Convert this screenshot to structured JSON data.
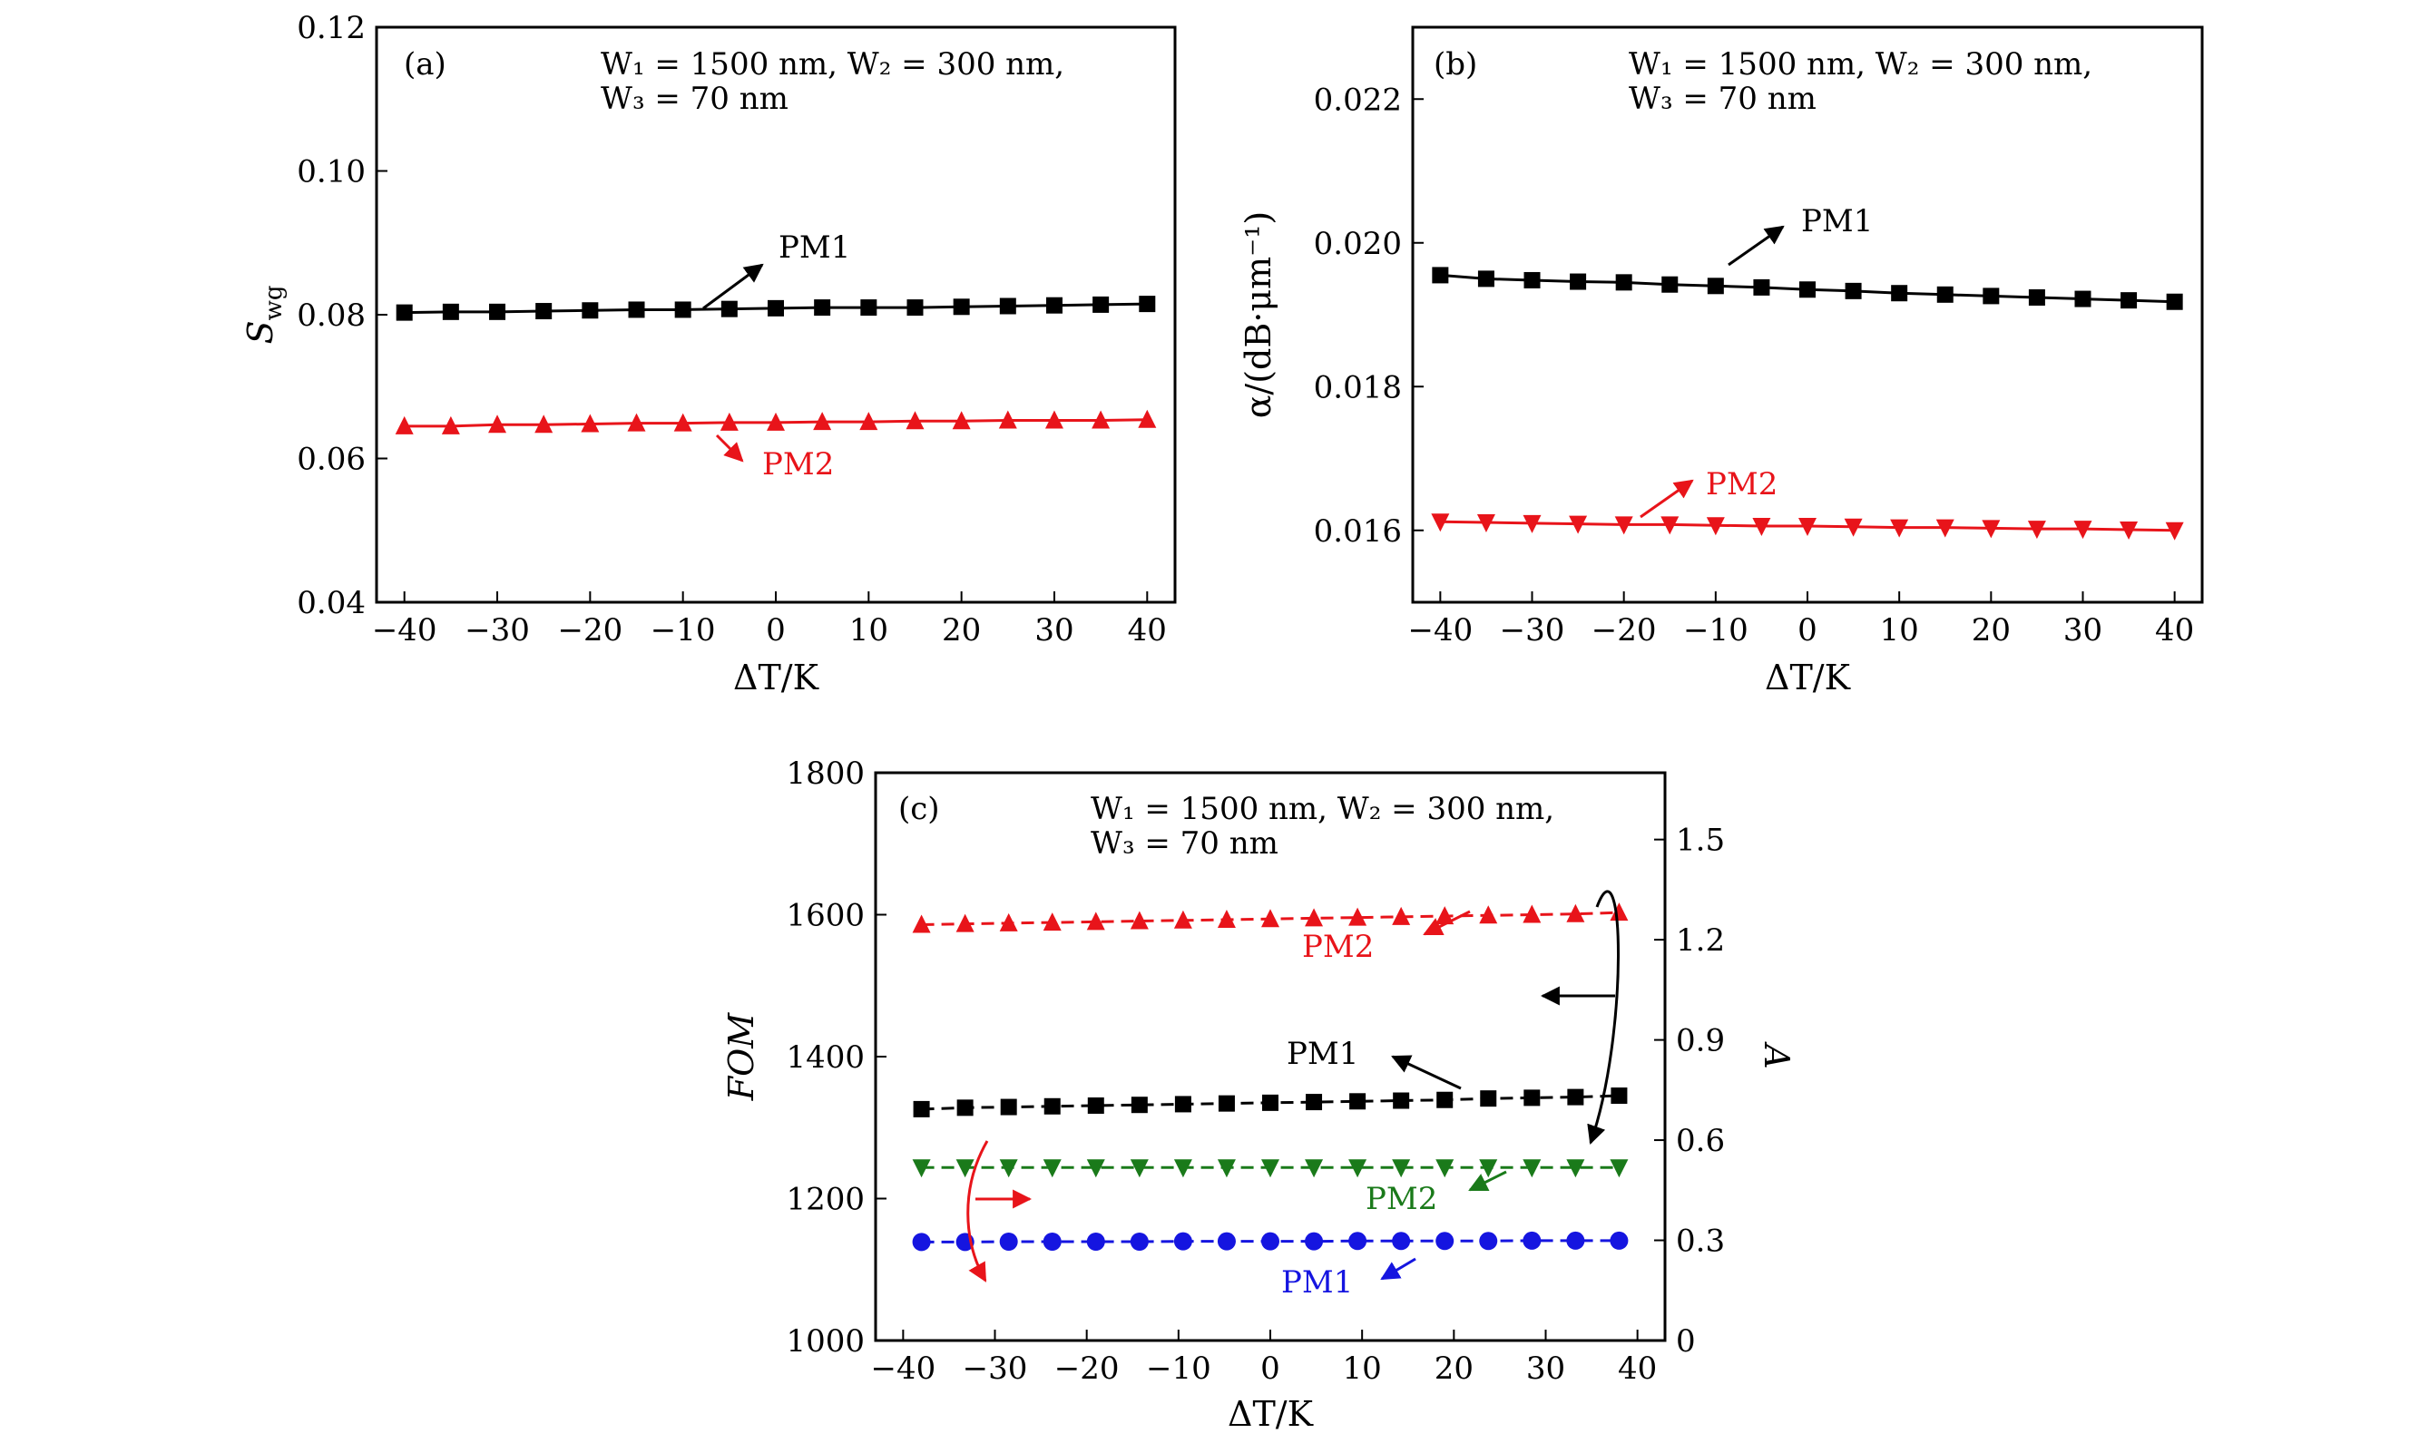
{
  "figure": {
    "panels": [
      {
        "id": "a",
        "label": "(a)",
        "param_line1": "W₁ = 1500 nm, W₂ = 300 nm,",
        "param_line2": "W₃ = 70 nm",
        "xlabel": "ΔT/K",
        "ylabel": "S_wg"
      },
      {
        "id": "b",
        "label": "(b)",
        "param_line1": "W₁ = 1500 nm, W₂ = 300 nm,",
        "param_line2": "W₃ = 70 nm",
        "xlabel": "ΔT/K",
        "ylabel": "α/(dB·μm⁻¹)"
      },
      {
        "id": "c",
        "label": "(c)",
        "param_line1": "W₁ = 1500 nm, W₂ = 300 nm,",
        "param_line2": "W₃ = 70 nm",
        "xlabel": "ΔT/K",
        "ylabel": "FOM",
        "ylabel_right": "A"
      }
    ]
  },
  "chart_data": [
    {
      "type": "line",
      "panel": "a",
      "xlabel": "ΔT/K",
      "ylabel": "S_wg",
      "xlim": [
        -43,
        43
      ],
      "ylim": [
        0.04,
        0.12
      ],
      "xticks": [
        "−40",
        "−30",
        "−20",
        "−10",
        "0",
        "10",
        "20",
        "30",
        "40"
      ],
      "yticks": [
        "0.04",
        "0.06",
        "0.08",
        "0.10",
        "0.12"
      ],
      "x": [
        -40,
        -35,
        -30,
        -25,
        -20,
        -15,
        -10,
        -5,
        0,
        5,
        10,
        15,
        20,
        25,
        30,
        35,
        40
      ],
      "series": [
        {
          "name": "PM1",
          "color": "#000000",
          "marker": "square",
          "values": [
            0.0803,
            0.0804,
            0.0804,
            0.0805,
            0.0806,
            0.0807,
            0.0807,
            0.0808,
            0.0809,
            0.081,
            0.081,
            0.081,
            0.0811,
            0.0812,
            0.0813,
            0.0814,
            0.0815
          ]
        },
        {
          "name": "PM2",
          "color": "#e8141a",
          "marker": "triangle-up",
          "values": [
            0.0645,
            0.0645,
            0.0647,
            0.0647,
            0.0648,
            0.0649,
            0.0649,
            0.065,
            0.065,
            0.0651,
            0.0651,
            0.0652,
            0.0652,
            0.0653,
            0.0653,
            0.0653,
            0.0654
          ]
        }
      ]
    },
    {
      "type": "line",
      "panel": "b",
      "xlabel": "ΔT/K",
      "ylabel": "α/(dB·μm⁻¹)",
      "xlim": [
        -43,
        43
      ],
      "ylim": [
        0.015,
        0.023
      ],
      "xticks": [
        "−40",
        "−30",
        "−20",
        "−10",
        "0",
        "10",
        "20",
        "30",
        "40"
      ],
      "yticks": [
        "0.016",
        "0.018",
        "0.020",
        "0.022"
      ],
      "x": [
        -40,
        -35,
        -30,
        -25,
        -20,
        -15,
        -10,
        -5,
        0,
        5,
        10,
        15,
        20,
        25,
        30,
        35,
        40
      ],
      "series": [
        {
          "name": "PM1",
          "color": "#000000",
          "marker": "square",
          "values": [
            0.01955,
            0.0195,
            0.01948,
            0.01946,
            0.01945,
            0.01942,
            0.0194,
            0.01938,
            0.01935,
            0.01933,
            0.0193,
            0.01928,
            0.01926,
            0.01924,
            0.01922,
            0.0192,
            0.01918
          ]
        },
        {
          "name": "PM2",
          "color": "#e8141a",
          "marker": "triangle-down",
          "values": [
            0.01612,
            0.01611,
            0.0161,
            0.01609,
            0.01608,
            0.01608,
            0.01607,
            0.01606,
            0.01606,
            0.01605,
            0.01604,
            0.01604,
            0.01603,
            0.01602,
            0.01602,
            0.01601,
            0.016
          ]
        }
      ]
    },
    {
      "type": "line",
      "panel": "c",
      "xlabel": "ΔT/K",
      "ylabel": "FOM",
      "ylabel_right": "A",
      "xlim": [
        -43,
        43
      ],
      "ylim": [
        1000,
        1800
      ],
      "ylim_right": [
        0,
        1.7
      ],
      "xticks": [
        "−40",
        "−30",
        "−20",
        "−10",
        "0",
        "10",
        "20",
        "30",
        "40"
      ],
      "yticks": [
        "1000",
        "1200",
        "1400",
        "1600",
        "1800"
      ],
      "yticks_right": [
        "0",
        "0.3",
        "0.6",
        "0.9",
        "1.2",
        "1.5"
      ],
      "x": [
        -38,
        -33.25,
        -28.5,
        -23.75,
        -19,
        -14.25,
        -9.5,
        -4.75,
        0,
        4.75,
        9.5,
        14.25,
        19,
        23.75,
        28.5,
        33.25,
        38
      ],
      "series": [
        {
          "name": "PM2",
          "axis": "left",
          "color": "#e8141a",
          "marker": "triangle-up",
          "dashed": true,
          "values": [
            1586,
            1587,
            1588,
            1589,
            1590,
            1591,
            1592,
            1593,
            1594,
            1595,
            1596,
            1597,
            1598,
            1599,
            1600,
            1601,
            1603
          ]
        },
        {
          "name": "PM1",
          "axis": "left",
          "color": "#000000",
          "marker": "square",
          "dashed": true,
          "values": [
            1326,
            1328,
            1329,
            1330,
            1331,
            1332,
            1333,
            1334,
            1335,
            1336,
            1337,
            1338,
            1339,
            1341,
            1342,
            1343,
            1345
          ]
        },
        {
          "name": "PM2",
          "axis": "right",
          "color": "#1a7a1a",
          "marker": "triangle-down",
          "dashed": true,
          "values": [
            0.518,
            0.518,
            0.518,
            0.518,
            0.518,
            0.518,
            0.518,
            0.518,
            0.518,
            0.518,
            0.518,
            0.518,
            0.518,
            0.518,
            0.518,
            0.518,
            0.518
          ]
        },
        {
          "name": "PM1",
          "axis": "right",
          "color": "#1515e0",
          "marker": "circle",
          "dashed": true,
          "values": [
            0.295,
            0.295,
            0.296,
            0.296,
            0.296,
            0.296,
            0.297,
            0.297,
            0.297,
            0.297,
            0.298,
            0.298,
            0.298,
            0.298,
            0.299,
            0.299,
            0.299
          ]
        }
      ]
    }
  ]
}
